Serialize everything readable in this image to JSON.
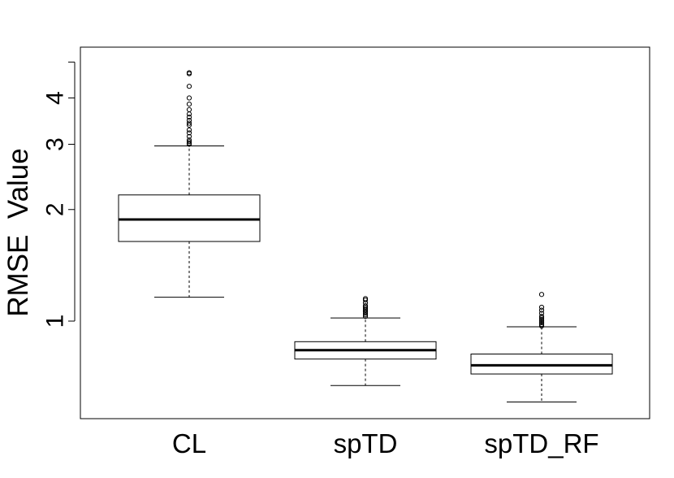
{
  "chart_data": {
    "type": "boxplot",
    "title": "",
    "xlabel": "",
    "ylabel": "RMSE  Value",
    "y_scale": "log",
    "ylim": [
      0.55,
      5.0
    ],
    "y_ticks": [
      1,
      2,
      3,
      4,
      5
    ],
    "y_tick_labels": [
      "1",
      "2",
      "3",
      "4",
      ""
    ],
    "grid": false,
    "legend": "none",
    "categories": [
      "CL",
      "spTD",
      "spTD_RF"
    ],
    "boxes": [
      {
        "name": "CL",
        "whisker_low": 1.16,
        "q1": 1.64,
        "median": 1.88,
        "q3": 2.19,
        "whisker_high": 2.97,
        "outliers": [
          3.0,
          3.02,
          3.05,
          3.08,
          3.15,
          3.22,
          3.28,
          3.38,
          3.42,
          3.48,
          3.55,
          3.62,
          3.72,
          3.85,
          4.0,
          4.3,
          4.65,
          4.68
        ]
      },
      {
        "name": "spTD",
        "whisker_low": 0.67,
        "q1": 0.79,
        "median": 0.835,
        "q3": 0.88,
        "whisker_high": 1.02,
        "outliers": [
          1.03,
          1.04,
          1.05,
          1.06,
          1.07,
          1.08,
          1.09,
          1.1,
          1.12,
          1.14,
          1.15
        ]
      },
      {
        "name": "spTD_RF",
        "whisker_low": 0.605,
        "q1": 0.72,
        "median": 0.76,
        "q3": 0.815,
        "whisker_high": 0.965,
        "outliers": [
          0.97,
          0.98,
          0.99,
          1.0,
          1.01,
          1.02,
          1.03,
          1.05,
          1.07,
          1.09,
          1.18
        ]
      }
    ]
  }
}
